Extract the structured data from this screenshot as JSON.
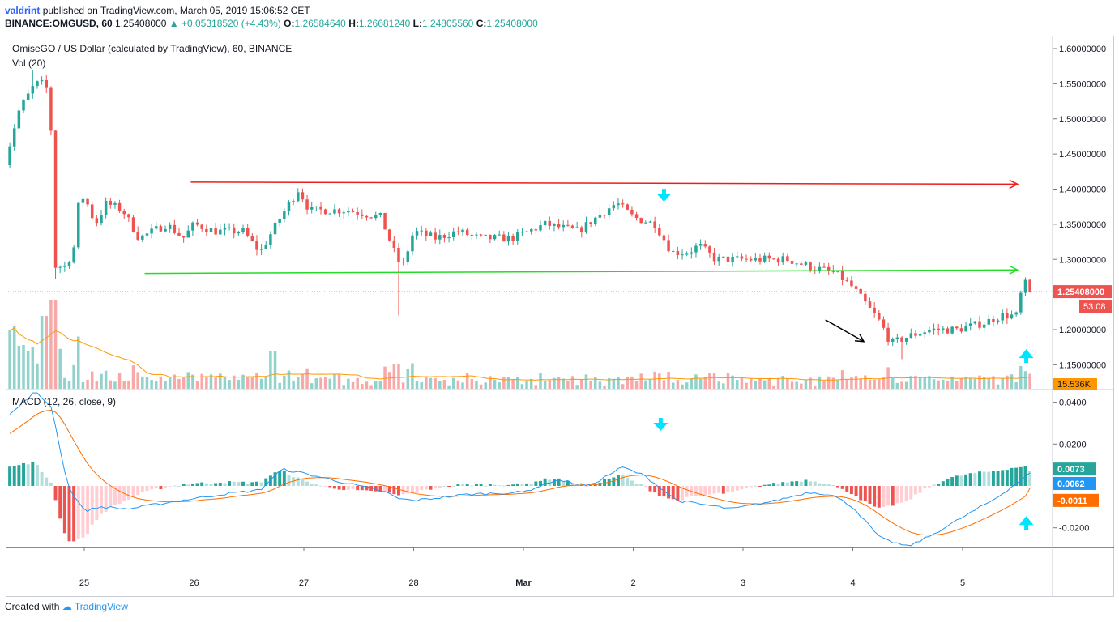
{
  "header": {
    "author": "valdrint",
    "published_text": "published on TradingView.com, March 05, 2019 15:06:52 CET",
    "symbol_line": "BINANCE:OMGUSD, 60",
    "last": "1.25408000",
    "change": "▲ +0.05318520 (+4.43%)",
    "o_label": "O:",
    "o_value": "1.26584640",
    "h_label": "H:",
    "h_value": "1.26681240",
    "l_label": "L:",
    "l_value": "1.24805560",
    "c_label": "C:",
    "c_value": "1.25408000"
  },
  "pane_titles": {
    "main": "OmiseGO / US Dollar (calculated by TradingView), 60, BINANCE",
    "volume": "Vol (20)",
    "macd": "MACD (12, 26, close, 9)"
  },
  "footer": {
    "created_with": "Created with",
    "brand": "TradingView"
  },
  "colors": {
    "up": "#26a69a",
    "down": "#ef5350",
    "resistance": "#ef1c1c",
    "support": "#22dd22",
    "annotation_arrow": "#00e5ff",
    "macd_line": "#2196f3",
    "signal_line": "#ff6d00",
    "vol_ma": "#ff9800",
    "price_label_bg": "#ef5350",
    "volume_label_bg": "#ff9800"
  },
  "chart_data": {
    "type": "candlestick",
    "symbol": "OMGUSD",
    "interval": "60",
    "exchange": "BINANCE",
    "x_tick_labels": [
      "25",
      "26",
      "27",
      "28",
      "Mar",
      "2",
      "3",
      "4",
      "5"
    ],
    "price_axis": {
      "range": [
        1.118,
        1.628
      ],
      "tick_labels": [
        "1.60000000",
        "1.55000000",
        "1.50000000",
        "1.45000000",
        "1.40000000",
        "1.35000000",
        "1.30000000",
        "1.25000000",
        "1.20000000",
        "1.15000000"
      ],
      "tick_values": [
        1.6,
        1.55,
        1.5,
        1.45,
        1.4,
        1.35,
        1.3,
        1.25,
        1.2,
        1.15
      ]
    },
    "last_price_label": "1.25408000",
    "countdown_label": "53:08",
    "last_price": 1.25408,
    "volume_label": "15.536K",
    "macd_axis": {
      "range": [
        -0.0298,
        0.0474
      ],
      "tick_labels": [
        "0.0400",
        "0.0200",
        "-0.0200"
      ],
      "tick_values": [
        0.04,
        0.02,
        -0.02
      ]
    },
    "macd_last": {
      "histogram": "0.0073",
      "macd": "0.0062",
      "signal": "-0.0011"
    },
    "macd_last_values": {
      "histogram": 0.0073,
      "macd": 0.0062,
      "signal": -0.0011
    },
    "resistance_line": {
      "price": 1.407,
      "from_day": 0.97,
      "to_day": 8.5
    },
    "support_line": {
      "price": 1.28,
      "from_day": 0.55,
      "to_day": 8.5
    },
    "keypoints": [
      {
        "d": -0.72,
        "p": 1.44
      },
      {
        "d": -0.6,
        "p": 1.51
      },
      {
        "d": -0.45,
        "p": 1.55
      },
      {
        "d": -0.35,
        "p": 1.55
      },
      {
        "d": -0.3,
        "p": 1.48
      },
      {
        "d": -0.28,
        "p": 1.29
      },
      {
        "d": -0.18,
        "p": 1.29
      },
      {
        "d": -0.1,
        "p": 1.31
      },
      {
        "d": -0.05,
        "p": 1.38
      },
      {
        "d": 0.0,
        "p": 1.39
      },
      {
        "d": 0.1,
        "p": 1.35
      },
      {
        "d": 0.2,
        "p": 1.38
      },
      {
        "d": 0.35,
        "p": 1.37
      },
      {
        "d": 0.5,
        "p": 1.33
      },
      {
        "d": 0.75,
        "p": 1.35
      },
      {
        "d": 0.9,
        "p": 1.33
      },
      {
        "d": 1.0,
        "p": 1.35
      },
      {
        "d": 1.2,
        "p": 1.34
      },
      {
        "d": 1.45,
        "p": 1.34
      },
      {
        "d": 1.6,
        "p": 1.31
      },
      {
        "d": 1.75,
        "p": 1.35
      },
      {
        "d": 1.95,
        "p": 1.4
      },
      {
        "d": 2.05,
        "p": 1.37
      },
      {
        "d": 2.4,
        "p": 1.37
      },
      {
        "d": 2.7,
        "p": 1.36
      },
      {
        "d": 2.85,
        "p": 1.3
      },
      {
        "d": 2.9,
        "p": 1.29
      },
      {
        "d": 3.0,
        "p": 1.34
      },
      {
        "d": 3.2,
        "p": 1.33
      },
      {
        "d": 3.4,
        "p": 1.34
      },
      {
        "d": 3.6,
        "p": 1.33
      },
      {
        "d": 3.9,
        "p": 1.33
      },
      {
        "d": 4.2,
        "p": 1.35
      },
      {
        "d": 4.5,
        "p": 1.34
      },
      {
        "d": 4.75,
        "p": 1.37
      },
      {
        "d": 4.85,
        "p": 1.38
      },
      {
        "d": 5.0,
        "p": 1.36
      },
      {
        "d": 5.2,
        "p": 1.35
      },
      {
        "d": 5.35,
        "p": 1.31
      },
      {
        "d": 5.5,
        "p": 1.31
      },
      {
        "d": 5.6,
        "p": 1.32
      },
      {
        "d": 5.75,
        "p": 1.3
      },
      {
        "d": 6.0,
        "p": 1.3
      },
      {
        "d": 6.2,
        "p": 1.3
      },
      {
        "d": 6.4,
        "p": 1.3
      },
      {
        "d": 6.6,
        "p": 1.29
      },
      {
        "d": 6.85,
        "p": 1.28
      },
      {
        "d": 7.0,
        "p": 1.26
      },
      {
        "d": 7.15,
        "p": 1.23
      },
      {
        "d": 7.25,
        "p": 1.21
      },
      {
        "d": 7.35,
        "p": 1.18
      },
      {
        "d": 7.5,
        "p": 1.19
      },
      {
        "d": 7.7,
        "p": 1.2
      },
      {
        "d": 7.95,
        "p": 1.2
      },
      {
        "d": 8.2,
        "p": 1.21
      },
      {
        "d": 8.35,
        "p": 1.22
      },
      {
        "d": 8.5,
        "p": 1.22
      },
      {
        "d": 8.55,
        "p": 1.27
      },
      {
        "d": 8.62,
        "p": 1.254
      }
    ],
    "macd_keypoints": [
      {
        "d": -0.72,
        "m": 0.032
      },
      {
        "d": -0.45,
        "m": 0.045
      },
      {
        "d": -0.3,
        "m": 0.038
      },
      {
        "d": -0.15,
        "m": 0.0
      },
      {
        "d": 0.0,
        "m": -0.012
      },
      {
        "d": 0.15,
        "m": -0.01
      },
      {
        "d": 0.4,
        "m": -0.011
      },
      {
        "d": 0.75,
        "m": -0.008
      },
      {
        "d": 1.25,
        "m": -0.004
      },
      {
        "d": 1.6,
        "m": -0.002
      },
      {
        "d": 1.8,
        "m": 0.008
      },
      {
        "d": 2.0,
        "m": 0.006
      },
      {
        "d": 2.5,
        "m": 0.0
      },
      {
        "d": 2.75,
        "m": -0.003
      },
      {
        "d": 2.85,
        "m": -0.006
      },
      {
        "d": 3.0,
        "m": -0.007
      },
      {
        "d": 3.5,
        "m": -0.004
      },
      {
        "d": 4.0,
        "m": -0.003
      },
      {
        "d": 4.3,
        "m": 0.003
      },
      {
        "d": 4.6,
        "m": 0.0
      },
      {
        "d": 4.9,
        "m": 0.009
      },
      {
        "d": 5.1,
        "m": 0.005
      },
      {
        "d": 5.4,
        "m": -0.007
      },
      {
        "d": 5.9,
        "m": -0.011
      },
      {
        "d": 6.3,
        "m": -0.007
      },
      {
        "d": 6.6,
        "m": -0.003
      },
      {
        "d": 6.8,
        "m": -0.004
      },
      {
        "d": 7.0,
        "m": -0.01
      },
      {
        "d": 7.25,
        "m": -0.025
      },
      {
        "d": 7.5,
        "m": -0.029
      },
      {
        "d": 7.7,
        "m": -0.024
      },
      {
        "d": 8.0,
        "m": -0.015
      },
      {
        "d": 8.3,
        "m": -0.006
      },
      {
        "d": 8.62,
        "m": 0.0062
      }
    ],
    "annotations": [
      {
        "type": "arrow-down",
        "day": 5.28,
        "pane": "price",
        "price": 1.39
      },
      {
        "type": "arrow-up",
        "day": 8.58,
        "pane": "price",
        "price": 1.163
      },
      {
        "type": "arrow-down",
        "day": 5.25,
        "pane": "macd",
        "value": 0.029
      },
      {
        "type": "arrow-up",
        "day": 8.58,
        "pane": "macd",
        "value": -0.0175
      }
    ],
    "trend_arrow": {
      "from_day": 6.75,
      "from_price": 1.214,
      "to_day": 7.1,
      "to_price": 1.183
    }
  }
}
